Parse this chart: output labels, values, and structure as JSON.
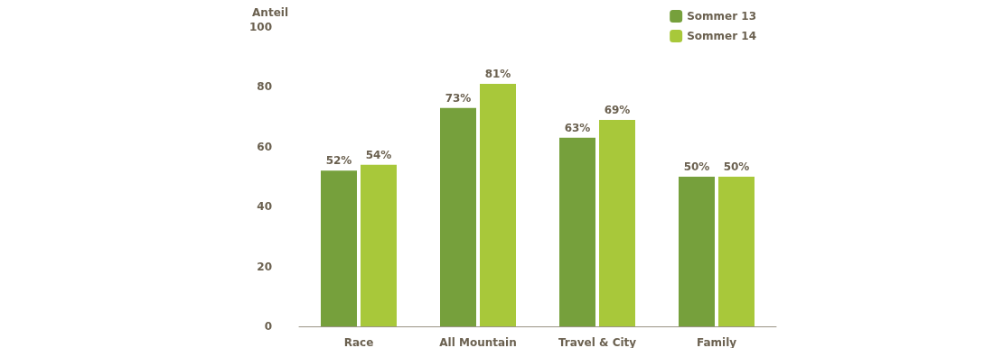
{
  "chart_data": {
    "type": "bar",
    "ylabel": "Anteil",
    "categories": [
      "Race",
      "All Mountain",
      "Travel & City",
      "Family"
    ],
    "series": [
      {
        "name": "Sommer 13",
        "color": "#76a03c",
        "values": [
          52,
          73,
          63,
          50
        ],
        "value_labels": [
          "52%",
          "73%",
          "63%",
          "50%"
        ]
      },
      {
        "name": "Sommer 14",
        "color": "#a8c83a",
        "values": [
          54,
          81,
          69,
          50
        ],
        "value_labels": [
          "54%",
          "81%",
          "69%",
          "50%"
        ]
      }
    ],
    "ylim": [
      0,
      100
    ],
    "yticks": [
      0,
      20,
      40,
      60,
      80,
      100
    ],
    "grid": false,
    "legend": "top right"
  }
}
